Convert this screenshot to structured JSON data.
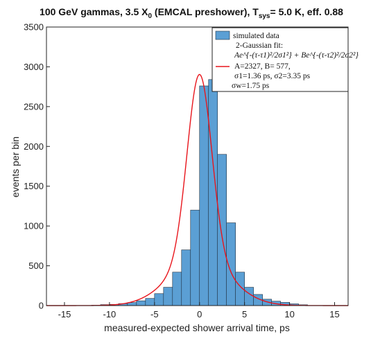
{
  "chart_data": {
    "type": "bar",
    "title_main": "100 GeV gammas, 3.5 X",
    "title_sub0": "0",
    "title_mid": " (EMCAL preshower), T",
    "title_subsys": "sys",
    "title_end": "= 5.0 K, eff. 0.88",
    "xlabel": "measured-expected shower arrival time, ps",
    "ylabel": "events per bin",
    "xlim": [
      -17,
      16.5
    ],
    "ylim": [
      0,
      3500
    ],
    "xticks": [
      -15,
      -10,
      -5,
      0,
      5,
      10,
      15
    ],
    "yticks": [
      0,
      500,
      1000,
      1500,
      2000,
      2500,
      3000,
      3500
    ],
    "grid": false,
    "legend_position": "top-right",
    "histogram": {
      "name": "simulated data",
      "color": "#5b9fd4",
      "edge_color": "#1f2f3f",
      "bin_edges": [
        -12,
        -11,
        -10,
        -9,
        -8,
        -7,
        -6,
        -5,
        -4,
        -3,
        -2,
        -1,
        0,
        1,
        2,
        3,
        4,
        5,
        6,
        7,
        8,
        9,
        10,
        11,
        12
      ],
      "counts": [
        5,
        12,
        15,
        25,
        38,
        60,
        90,
        150,
        230,
        420,
        700,
        1200,
        2760,
        2840,
        1900,
        1040,
        420,
        230,
        140,
        80,
        55,
        40,
        22,
        10
      ]
    },
    "fit": {
      "name": "2-Gaussian fit:",
      "color": "#e8141b",
      "A": 2327,
      "B": 577,
      "tau1": 0,
      "tau2": 0,
      "sigma1": 1.36,
      "sigma2": 3.35
    },
    "legend": {
      "entry1": "simulated data",
      "entry2_line1": "2-Gaussian fit:",
      "entry2_formula": "Ae^{-(τ-τ1)²/2σ1²} + Be^{-(τ-τ2)²/2σ2²}",
      "entry2_line3": "A=2327, B= 577,",
      "entry2_line4": "σ1=1.36 ps, σ2=3.35 ps",
      "entry2_line5": "σw=1.75 ps"
    }
  }
}
